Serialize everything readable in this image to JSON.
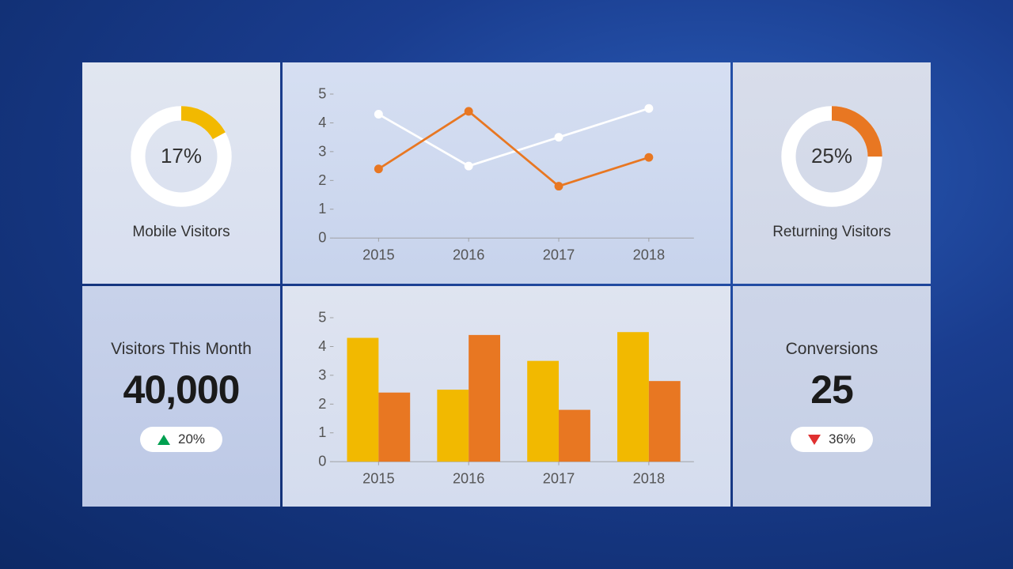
{
  "colors": {
    "yellow": "#f2b900",
    "orange": "#e87722",
    "white": "#ffffff",
    "text": "#333333",
    "axis": "#7a7a7a",
    "green": "#00a050",
    "red": "#e03030"
  },
  "mobile_visitors": {
    "type": "donut",
    "percent": 17,
    "label": "Mobile Visitors",
    "value_text": "17%",
    "track_color": "#ffffff",
    "fill_color": "#f2b900",
    "stroke_width": 14
  },
  "returning_visitors": {
    "type": "donut",
    "percent": 25,
    "label": "Returning Visitors",
    "value_text": "25%",
    "track_color": "#ffffff",
    "fill_color": "#e87722",
    "stroke_width": 14
  },
  "line_chart": {
    "type": "line",
    "categories": [
      "2015",
      "2016",
      "2017",
      "2018"
    ],
    "ylim": [
      0,
      5
    ],
    "ytick_step": 1,
    "series": [
      {
        "color": "#ffffff",
        "values": [
          4.3,
          2.5,
          3.5,
          4.5
        ],
        "marker_fill": "#ffffff"
      },
      {
        "color": "#e87722",
        "values": [
          2.4,
          4.4,
          1.8,
          2.8
        ],
        "marker_fill": "#e87722"
      }
    ],
    "axis_color": "#9a9a9a",
    "label_fontsize": 20
  },
  "bar_chart": {
    "type": "bar",
    "categories": [
      "2015",
      "2016",
      "2017",
      "2018"
    ],
    "ylim": [
      0,
      5
    ],
    "ytick_step": 1,
    "series": [
      {
        "color": "#f2b900",
        "values": [
          4.3,
          2.5,
          3.5,
          4.5
        ]
      },
      {
        "color": "#e87722",
        "values": [
          2.4,
          4.4,
          1.8,
          2.8
        ]
      }
    ],
    "bar_width": 0.35,
    "axis_color": "#9a9a9a",
    "label_fontsize": 20
  },
  "visitors_month": {
    "label": "Visitors This Month",
    "value": "40,000",
    "change_pct": "20%",
    "direction": "up"
  },
  "conversions": {
    "label": "Conversions",
    "value": "25",
    "change_pct": "36%",
    "direction": "down"
  }
}
